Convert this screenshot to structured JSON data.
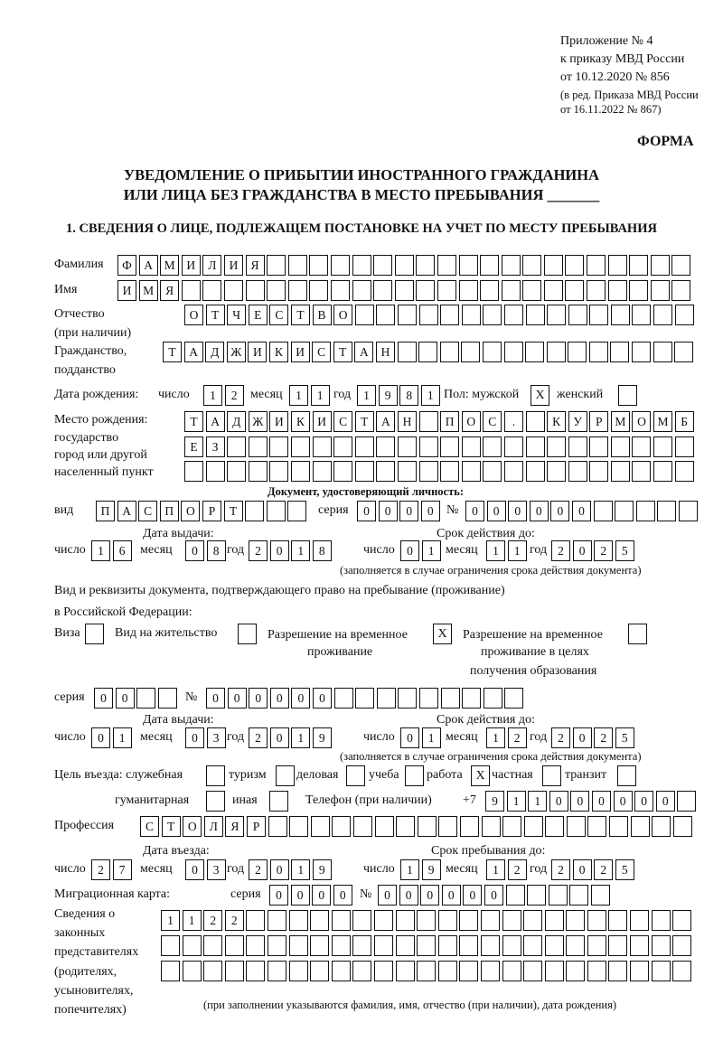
{
  "header": {
    "appendix_line1": "Приложение № 4",
    "appendix_line2": "к приказу МВД России",
    "appendix_line3": "от 10.12.2020 № 856",
    "revision_line1": "(в ред. Приказа МВД России",
    "revision_line2": "от 16.11.2022 № 867)",
    "form_label": "ФОРМА",
    "title_line1": "УВЕДОМЛЕНИЕ О ПРИБЫТИИ ИНОСТРАННОГО ГРАЖДАНИНА",
    "title_line2": "ИЛИ ЛИЦА БЕЗ ГРАЖДАНСТВА В МЕСТО ПРЕБЫВАНИЯ _______",
    "section1": "1. СВЕДЕНИЯ О ЛИЦЕ, ПОДЛЕЖАЩЕМ ПОСТАНОВКЕ НА УЧЕТ ПО МЕСТУ ПРЕБЫВАНИЯ"
  },
  "person": {
    "surname_label": "Фамилия",
    "surname": [
      "Ф",
      "А",
      "М",
      "И",
      "Л",
      "И",
      "Я",
      "",
      "",
      "",
      "",
      "",
      "",
      "",
      "",
      "",
      "",
      "",
      "",
      "",
      "",
      "",
      "",
      "",
      "",
      "",
      ""
    ],
    "name_label": "Имя",
    "name": [
      "И",
      "М",
      "Я",
      "",
      "",
      "",
      "",
      "",
      "",
      "",
      "",
      "",
      "",
      "",
      "",
      "",
      "",
      "",
      "",
      "",
      "",
      "",
      "",
      "",
      "",
      "",
      ""
    ],
    "patronymic_label": "Отчество",
    "patronymic_label2": "(при наличии)",
    "patronymic": [
      "О",
      "Т",
      "Ч",
      "Е",
      "С",
      "Т",
      "В",
      "О",
      "",
      "",
      "",
      "",
      "",
      "",
      "",
      "",
      "",
      "",
      "",
      "",
      "",
      "",
      "",
      ""
    ],
    "citizenship_label": "Гражданство,",
    "citizenship_label2": "подданство",
    "citizenship": [
      "Т",
      "А",
      "Д",
      "Ж",
      "И",
      "К",
      "И",
      "С",
      "Т",
      "А",
      "Н",
      "",
      "",
      "",
      "",
      "",
      "",
      "",
      "",
      "",
      "",
      "",
      "",
      "",
      " "
    ],
    "birth_label": "Дата рождения:",
    "day_label": "число",
    "month_label": "месяц",
    "year_label": "год",
    "birth_day": [
      "1",
      "2"
    ],
    "birth_month": [
      "1",
      "1"
    ],
    "birth_year": [
      "1",
      "9",
      "8",
      "1"
    ],
    "sex_label": "Пол: мужской",
    "male": "X",
    "female_label": "женский",
    "female": "",
    "birthplace_label1": "Место рождения:",
    "birthplace_label2": "государство",
    "birthplace_label3": "город или другой",
    "birthplace_label4": "населенный пункт",
    "birthplace_row1": [
      "Т",
      "А",
      "Д",
      "Ж",
      "И",
      "К",
      "И",
      "С",
      "Т",
      "А",
      "Н",
      "",
      "П",
      "О",
      "С",
      ".",
      "",
      "К",
      "У",
      "Р",
      "М",
      "О",
      "М",
      "Б"
    ],
    "birthplace_row2": [
      "Е",
      "З",
      "",
      "",
      "",
      "",
      "",
      "",
      "",
      "",
      "",
      "",
      "",
      "",
      "",
      "",
      "",
      "",
      "",
      "",
      "",
      "",
      "",
      ""
    ],
    "birthplace_row3": [
      "",
      "",
      "",
      "",
      "",
      "",
      "",
      "",
      "",
      "",
      "",
      "",
      "",
      "",
      "",
      "",
      "",
      "",
      "",
      "",
      "",
      "",
      "",
      ""
    ]
  },
  "id_document": {
    "heading": "Документ, удостоверяющий личность:",
    "kind_label": "вид",
    "kind": [
      "П",
      "А",
      "С",
      "П",
      "О",
      "Р",
      "Т",
      "",
      "",
      ""
    ],
    "series_label": "серия",
    "series": [
      "0",
      "0",
      "0",
      "0"
    ],
    "number_label": "№",
    "number": [
      "0",
      "0",
      "0",
      "0",
      "0",
      "0",
      "",
      "",
      "",
      "",
      ""
    ],
    "issue_label": "Дата выдачи:",
    "issue_day": [
      "1",
      "6"
    ],
    "issue_month": [
      "0",
      "8"
    ],
    "issue_year": [
      "2",
      "0",
      "1",
      "8"
    ],
    "valid_label": "Срок действия до:",
    "valid_day": [
      "0",
      "1"
    ],
    "valid_month": [
      "1",
      "1"
    ],
    "valid_year": [
      "2",
      "0",
      "2",
      "5"
    ],
    "note": "(заполняется в случае ограничения срока действия документа)"
  },
  "stay_document": {
    "heading1": "Вид и реквизиты документа, подтверждающего право на пребывание (проживание)",
    "heading2": "в Российской Федерации:",
    "visa_label": "Виза",
    "visa": "",
    "residence_label": "Вид на жительство",
    "residence": "",
    "temp_label1": "Разрешение на временное",
    "temp_label2": "проживание",
    "temp": "X",
    "edu_label1": "Разрешение на временное",
    "edu_label2": "проживание в целях",
    "edu_label3": "получения образования",
    "edu": "",
    "series_label": "серия",
    "series": [
      "0",
      "0",
      "",
      ""
    ],
    "number_label": "№",
    "number": [
      "0",
      "0",
      "0",
      "0",
      "0",
      "0",
      "",
      "",
      "",
      "",
      "",
      "",
      "",
      "",
      ""
    ],
    "issue_label": "Дата выдачи:",
    "issue_day": [
      "0",
      "1"
    ],
    "issue_month": [
      "0",
      "3"
    ],
    "issue_year": [
      "2",
      "0",
      "1",
      "9"
    ],
    "valid_label": "Срок действия до:",
    "valid_day": [
      "0",
      "1"
    ],
    "valid_month": [
      "1",
      "2"
    ],
    "valid_year": [
      "2",
      "0",
      "2",
      "5"
    ],
    "note": "(заполняется в случае ограничения срока действия документа)"
  },
  "purpose": {
    "label": "Цель въезда: служебная",
    "official": "",
    "tourism_label": "туризм",
    "tourism": "",
    "business_label": "деловая",
    "business": "",
    "study_label": "учеба",
    "study": "",
    "work_label": "работа",
    "work": "X",
    "private_label": "частная",
    "private": "",
    "transit_label": "транзит",
    "transit": "",
    "humanitarian_label": "гуманитарная",
    "humanitarian": "",
    "other_label": "иная",
    "other": "",
    "phone_label": "Телефон (при наличии)",
    "phone_prefix": "+7",
    "phone": [
      "9",
      "1",
      "1",
      "0",
      "0",
      "0",
      "0",
      "0",
      "0",
      ""
    ]
  },
  "profession": {
    "label": "Профессия",
    "value": [
      "С",
      "Т",
      "О",
      "Л",
      "Я",
      "Р",
      "",
      "",
      "",
      "",
      "",
      "",
      "",
      "",
      "",
      "",
      "",
      "",
      "",
      "",
      "",
      "",
      "",
      "",
      "",
      ""
    ]
  },
  "entry": {
    "entry_label": "Дата въезда:",
    "entry_day": [
      "2",
      "7"
    ],
    "entry_month": [
      "0",
      "3"
    ],
    "entry_year": [
      "2",
      "0",
      "1",
      "9"
    ],
    "stay_label": "Срок пребывания до:",
    "stay_day": [
      "1",
      "9"
    ],
    "stay_month": [
      "1",
      "2"
    ],
    "stay_year": [
      "2",
      "0",
      "2",
      "5"
    ]
  },
  "migration_card": {
    "label": "Миграционная карта:",
    "series_label": "серия",
    "series": [
      "0",
      "0",
      "0",
      "0"
    ],
    "number_label": "№",
    "number": [
      "0",
      "0",
      "0",
      "0",
      "0",
      "0",
      "",
      "",
      "",
      "",
      ""
    ]
  },
  "representatives": {
    "label1": "Сведения о",
    "label2": "законных",
    "label3": "представителях",
    "label4": "(родителях,",
    "label5": "усыновителях,",
    "label6": "попечителях)",
    "row1": [
      "1",
      "1",
      "2",
      "2",
      "",
      "",
      "",
      "",
      "",
      "",
      "",
      "",
      "",
      "",
      "",
      "",
      "",
      "",
      "",
      "",
      "",
      "",
      "",
      "",
      ""
    ],
    "row2": [
      "",
      "",
      "",
      "",
      "",
      "",
      "",
      "",
      "",
      "",
      "",
      "",
      "",
      "",
      "",
      "",
      "",
      "",
      "",
      "",
      "",
      "",
      "",
      "",
      ""
    ],
    "row3": [
      "",
      "",
      "",
      "",
      "",
      "",
      "",
      "",
      "",
      "",
      "",
      "",
      "",
      "",
      "",
      "",
      "",
      "",
      "",
      "",
      "",
      "",
      "",
      "",
      ""
    ],
    "note": "(при заполнении указываются фамилия, имя, отчество (при наличии), дата рождения)"
  }
}
